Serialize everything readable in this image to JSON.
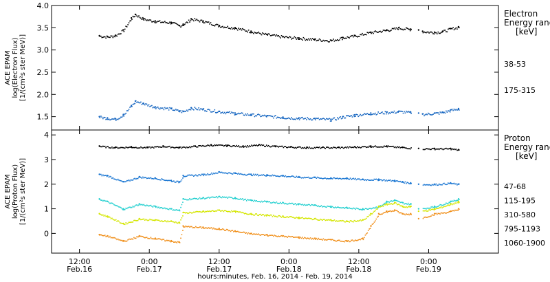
{
  "chart_data": [
    {
      "type": "scatter",
      "panel": "electron",
      "ylabel_lines": [
        "ACE EPAM",
        "log(Electron Flux)",
        "[1/(cm²s ster MeV)]"
      ],
      "ylim": [
        1.2,
        4.0
      ],
      "y_ticks": [
        "1.5",
        "2.0",
        "2.5",
        "3.0",
        "3.5",
        "4.0"
      ],
      "legend_title": [
        "Electron",
        "Energy range",
        "[keV]"
      ],
      "series": [
        {
          "name": "38-53",
          "color": "#000000",
          "values": [
            [
              0.0,
              3.32
            ],
            [
              0.1,
              3.3
            ],
            [
              0.2,
              3.33
            ],
            [
              0.3,
              3.45
            ],
            [
              0.4,
              3.72
            ],
            [
              0.45,
              3.8
            ],
            [
              0.55,
              3.7
            ],
            [
              0.7,
              3.65
            ],
            [
              0.9,
              3.62
            ],
            [
              1.0,
              3.55
            ],
            [
              1.05,
              3.58
            ],
            [
              1.15,
              3.7
            ],
            [
              1.3,
              3.65
            ],
            [
              1.5,
              3.55
            ],
            [
              1.7,
              3.5
            ],
            [
              1.9,
              3.42
            ],
            [
              2.1,
              3.35
            ],
            [
              2.3,
              3.3
            ],
            [
              2.5,
              3.27
            ],
            [
              2.7,
              3.24
            ],
            [
              2.9,
              3.22
            ],
            [
              3.05,
              3.28
            ],
            [
              3.2,
              3.32
            ],
            [
              3.4,
              3.4
            ],
            [
              3.6,
              3.45
            ],
            [
              3.75,
              3.5
            ],
            [
              3.9,
              3.47
            ],
            [
              4.0,
              3.45
            ],
            [
              4.05,
              3.42
            ],
            [
              4.2,
              3.4
            ],
            [
              4.3,
              3.42
            ],
            [
              4.4,
              3.48
            ],
            [
              4.5,
              3.52
            ]
          ]
        },
        {
          "name": "175-315",
          "color": "#1565c0",
          "values": [
            [
              0.0,
              1.5
            ],
            [
              0.1,
              1.47
            ],
            [
              0.2,
              1.45
            ],
            [
              0.3,
              1.55
            ],
            [
              0.4,
              1.75
            ],
            [
              0.45,
              1.85
            ],
            [
              0.55,
              1.8
            ],
            [
              0.7,
              1.72
            ],
            [
              0.9,
              1.68
            ],
            [
              1.0,
              1.63
            ],
            [
              1.05,
              1.62
            ],
            [
              1.15,
              1.7
            ],
            [
              1.3,
              1.67
            ],
            [
              1.5,
              1.62
            ],
            [
              1.7,
              1.58
            ],
            [
              1.9,
              1.55
            ],
            [
              2.1,
              1.52
            ],
            [
              2.3,
              1.49
            ],
            [
              2.5,
              1.47
            ],
            [
              2.7,
              1.46
            ],
            [
              2.9,
              1.44
            ],
            [
              3.05,
              1.5
            ],
            [
              3.2,
              1.54
            ],
            [
              3.4,
              1.58
            ],
            [
              3.6,
              1.6
            ],
            [
              3.75,
              1.62
            ],
            [
              3.9,
              1.6
            ],
            [
              4.0,
              1.58
            ],
            [
              4.05,
              1.56
            ],
            [
              4.2,
              1.58
            ],
            [
              4.3,
              1.6
            ],
            [
              4.4,
              1.65
            ],
            [
              4.5,
              1.68
            ]
          ]
        }
      ]
    },
    {
      "type": "scatter",
      "panel": "proton",
      "ylabel_lines": [
        "ACE EPAM",
        "log(Proton Flux)",
        "[1/(cm²s ster MeV)]"
      ],
      "ylim": [
        -0.8,
        4.2
      ],
      "y_ticks": [
        "0",
        "1",
        "2",
        "3",
        "4"
      ],
      "legend_title": [
        "Proton",
        "Energy range",
        "[keV]"
      ],
      "series": [
        {
          "name": "47-68",
          "color": "#000000",
          "values": [
            [
              0.0,
              3.55
            ],
            [
              0.2,
              3.5
            ],
            [
              0.4,
              3.52
            ],
            [
              0.6,
              3.5
            ],
            [
              0.8,
              3.55
            ],
            [
              1.0,
              3.5
            ],
            [
              1.2,
              3.55
            ],
            [
              1.4,
              3.6
            ],
            [
              1.6,
              3.58
            ],
            [
              1.8,
              3.55
            ],
            [
              2.0,
              3.6
            ],
            [
              2.2,
              3.55
            ],
            [
              2.4,
              3.52
            ],
            [
              2.6,
              3.5
            ],
            [
              2.8,
              3.5
            ],
            [
              3.0,
              3.5
            ],
            [
              3.2,
              3.52
            ],
            [
              3.4,
              3.55
            ],
            [
              3.6,
              3.55
            ],
            [
              3.8,
              3.5
            ],
            [
              4.0,
              3.45
            ],
            [
              4.2,
              3.45
            ],
            [
              4.4,
              3.45
            ],
            [
              4.5,
              3.4
            ]
          ]
        },
        {
          "name": "115-195",
          "color": "#1976d2",
          "values": [
            [
              0.0,
              2.4
            ],
            [
              0.1,
              2.35
            ],
            [
              0.3,
              2.1
            ],
            [
              0.5,
              2.3
            ],
            [
              0.7,
              2.25
            ],
            [
              0.9,
              2.15
            ],
            [
              1.0,
              2.1
            ],
            [
              1.05,
              2.35
            ],
            [
              1.3,
              2.4
            ],
            [
              1.5,
              2.5
            ],
            [
              1.7,
              2.45
            ],
            [
              1.9,
              2.4
            ],
            [
              2.1,
              2.38
            ],
            [
              2.3,
              2.35
            ],
            [
              2.5,
              2.3
            ],
            [
              2.7,
              2.28
            ],
            [
              2.9,
              2.25
            ],
            [
              3.1,
              2.25
            ],
            [
              3.3,
              2.2
            ],
            [
              3.5,
              2.2
            ],
            [
              3.7,
              2.15
            ],
            [
              3.8,
              2.1
            ],
            [
              3.9,
              2.05
            ],
            [
              4.0,
              2.0
            ],
            [
              4.2,
              2.0
            ],
            [
              4.4,
              2.05
            ],
            [
              4.5,
              2.0
            ]
          ]
        },
        {
          "name": "310-580",
          "color": "#26d0d0",
          "values": [
            [
              0.0,
              1.4
            ],
            [
              0.1,
              1.3
            ],
            [
              0.3,
              1.0
            ],
            [
              0.5,
              1.2
            ],
            [
              0.7,
              1.1
            ],
            [
              0.9,
              1.0
            ],
            [
              1.0,
              0.95
            ],
            [
              1.05,
              1.4
            ],
            [
              1.3,
              1.45
            ],
            [
              1.5,
              1.5
            ],
            [
              1.7,
              1.45
            ],
            [
              1.9,
              1.35
            ],
            [
              2.1,
              1.3
            ],
            [
              2.3,
              1.25
            ],
            [
              2.5,
              1.2
            ],
            [
              2.7,
              1.15
            ],
            [
              2.9,
              1.1
            ],
            [
              3.1,
              1.05
            ],
            [
              3.3,
              1.0
            ],
            [
              3.5,
              1.1
            ],
            [
              3.6,
              1.3
            ],
            [
              3.7,
              1.35
            ],
            [
              3.8,
              1.25
            ],
            [
              3.9,
              1.2
            ],
            [
              4.0,
              1.0
            ],
            [
              4.2,
              1.1
            ],
            [
              4.4,
              1.3
            ],
            [
              4.5,
              1.4
            ]
          ]
        },
        {
          "name": "795-1193",
          "color": "#d4e600",
          "values": [
            [
              0.0,
              0.8
            ],
            [
              0.1,
              0.7
            ],
            [
              0.3,
              0.4
            ],
            [
              0.5,
              0.6
            ],
            [
              0.7,
              0.55
            ],
            [
              0.9,
              0.5
            ],
            [
              1.0,
              0.45
            ],
            [
              1.05,
              0.85
            ],
            [
              1.3,
              0.9
            ],
            [
              1.5,
              0.95
            ],
            [
              1.7,
              0.9
            ],
            [
              1.9,
              0.8
            ],
            [
              2.1,
              0.75
            ],
            [
              2.3,
              0.7
            ],
            [
              2.5,
              0.65
            ],
            [
              2.7,
              0.6
            ],
            [
              2.9,
              0.55
            ],
            [
              3.1,
              0.5
            ],
            [
              3.3,
              0.55
            ],
            [
              3.4,
              0.8
            ],
            [
              3.5,
              1.1
            ],
            [
              3.6,
              1.2
            ],
            [
              3.7,
              1.25
            ],
            [
              3.8,
              1.1
            ],
            [
              3.9,
              1.1
            ],
            [
              4.0,
              0.9
            ],
            [
              4.2,
              1.0
            ],
            [
              4.4,
              1.2
            ],
            [
              4.5,
              1.3
            ]
          ]
        },
        {
          "name": "1060-1900",
          "color": "#f0901c",
          "values": [
            [
              0.0,
              -0.05
            ],
            [
              0.1,
              -0.1
            ],
            [
              0.3,
              -0.3
            ],
            [
              0.5,
              -0.1
            ],
            [
              0.7,
              -0.2
            ],
            [
              0.9,
              -0.3
            ],
            [
              1.0,
              -0.35
            ],
            [
              1.05,
              0.3
            ],
            [
              1.3,
              0.25
            ],
            [
              1.5,
              0.2
            ],
            [
              1.7,
              0.1
            ],
            [
              1.9,
              0.0
            ],
            [
              2.1,
              -0.05
            ],
            [
              2.3,
              -0.1
            ],
            [
              2.5,
              -0.15
            ],
            [
              2.7,
              -0.2
            ],
            [
              2.9,
              -0.25
            ],
            [
              3.1,
              -0.3
            ],
            [
              3.3,
              -0.2
            ],
            [
              3.4,
              0.3
            ],
            [
              3.5,
              0.8
            ],
            [
              3.6,
              0.9
            ],
            [
              3.7,
              0.95
            ],
            [
              3.8,
              0.8
            ],
            [
              3.9,
              0.8
            ],
            [
              4.0,
              0.6
            ],
            [
              4.2,
              0.8
            ],
            [
              4.4,
              0.9
            ],
            [
              4.5,
              1.0
            ]
          ]
        }
      ]
    }
  ],
  "time_axis": {
    "ticks": [
      {
        "time": "12:00",
        "date": "Feb.16"
      },
      {
        "time": "0:00",
        "date": "Feb.17"
      },
      {
        "time": "12:00",
        "date": "Feb.17"
      },
      {
        "time": "0:00",
        "date": "Feb.18"
      },
      {
        "time": "12:00",
        "date": "Feb.18"
      },
      {
        "time": "0:00",
        "date": "Feb.19"
      }
    ],
    "xlabel": "hours:minutes, Feb. 16, 2014 - Feb. 19, 2014"
  }
}
